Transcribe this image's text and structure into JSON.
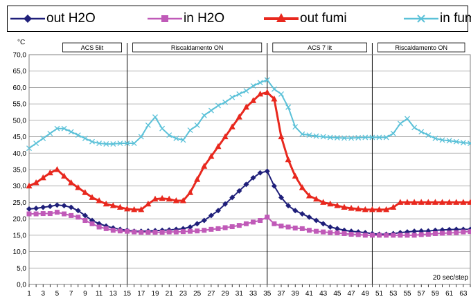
{
  "chart_data": {
    "type": "line",
    "ylabel": "°C",
    "ylim": [
      0,
      70
    ],
    "yticks": [
      "0,0",
      "5,0",
      "10,0",
      "15,0",
      "20,0",
      "25,0",
      "30,0",
      "35,0",
      "40,0",
      "45,0",
      "50,0",
      "55,0",
      "60,0",
      "65,0",
      "70,0"
    ],
    "xlim": [
      1,
      64
    ],
    "xticks": [
      "1",
      "3",
      "5",
      "7",
      "9",
      "11",
      "13",
      "15",
      "17",
      "19",
      "21",
      "23",
      "25",
      "27",
      "29",
      "31",
      "33",
      "35",
      "37",
      "39",
      "41",
      "43",
      "45",
      "47",
      "49",
      "51",
      "53",
      "55",
      "57",
      "59",
      "61",
      "63"
    ],
    "grid": "horizontal",
    "legend_position": "top",
    "annotation": "20 sec/step",
    "phases": [
      {
        "label": "ACS  5lit",
        "start": 5,
        "end": 15
      },
      {
        "label": "Riscaldamento ON",
        "start": 15,
        "end": 35
      },
      {
        "label": "ACS 7 lit",
        "start": 35,
        "end": 50
      },
      {
        "label": "Riscaldamento ON",
        "start": 50,
        "end": 64
      }
    ],
    "series": [
      {
        "name": "out H2O",
        "color": "#1f1f7a",
        "marker": "diamond",
        "values": [
          23,
          23.2,
          23.5,
          23.8,
          24.2,
          24,
          23.5,
          22.5,
          21,
          19.5,
          18.5,
          17.8,
          17.2,
          16.8,
          16.5,
          16.2,
          16.2,
          16.3,
          16.4,
          16.5,
          16.6,
          16.8,
          17,
          17.5,
          18.5,
          19.5,
          21,
          22.5,
          24.5,
          26.5,
          28.5,
          30.5,
          32.5,
          34,
          34.5,
          30,
          26.5,
          24,
          22.5,
          21.5,
          20.5,
          19.5,
          18.5,
          17.5,
          17,
          16.5,
          16.2,
          16,
          15.8,
          15.5,
          15.3,
          15.3,
          15.5,
          15.8,
          16,
          16.2,
          16.3,
          16.3,
          16.5,
          16.6,
          16.7,
          16.8,
          16.8,
          16.8
        ]
      },
      {
        "name": "in H2O",
        "color": "#c05ab8",
        "marker": "square",
        "values": [
          21.5,
          21.5,
          21.6,
          21.6,
          22,
          21.5,
          21,
          20.5,
          19.5,
          18.5,
          17.5,
          17,
          16.5,
          16.3,
          16.2,
          16,
          15.9,
          15.9,
          15.9,
          15.9,
          16,
          16,
          16.1,
          16.2,
          16.3,
          16.5,
          16.8,
          17,
          17.3,
          17.6,
          18,
          18.5,
          19,
          19.5,
          20.5,
          18.5,
          17.8,
          17.5,
          17.2,
          17,
          16.5,
          16.2,
          16,
          15.8,
          15.7,
          15.5,
          15.3,
          15.2,
          15,
          15,
          15,
          15,
          15,
          15,
          15,
          15,
          15.2,
          15.3,
          15.5,
          15.6,
          15.7,
          15.8,
          16,
          16.1
        ]
      },
      {
        "name": "out fumi",
        "color": "#e8281e",
        "marker": "triangle",
        "values": [
          30,
          31,
          32.5,
          34,
          35,
          33,
          31,
          29.5,
          28,
          26.5,
          25.5,
          24.5,
          24,
          23.5,
          23,
          22.8,
          22.8,
          24.5,
          26,
          26.2,
          26,
          25.5,
          25.5,
          28,
          32,
          36,
          39,
          42,
          45,
          48,
          51,
          54,
          56,
          58,
          58.5,
          56.5,
          45,
          38,
          33,
          29.5,
          27,
          26,
          25,
          24.5,
          24,
          23.5,
          23.2,
          23,
          22.8,
          22.8,
          22.8,
          22.8,
          23.5,
          25,
          25,
          25,
          25,
          25,
          25,
          25,
          25,
          25,
          25,
          25
        ]
      },
      {
        "name": "in fumi",
        "color": "#5bc1d8",
        "marker": "x",
        "values": [
          41.5,
          43,
          44.5,
          46,
          47.5,
          47.5,
          46.5,
          45.5,
          44.5,
          43.5,
          43,
          42.8,
          42.8,
          43,
          43,
          43,
          45,
          48.5,
          51,
          47.5,
          45.5,
          44.5,
          44,
          47,
          48.5,
          51.5,
          53,
          54.5,
          55.5,
          57,
          58,
          59,
          60.5,
          61.5,
          62.3,
          59.5,
          58,
          54,
          48,
          45.8,
          45.5,
          45.2,
          45,
          44.8,
          44.7,
          44.6,
          44.6,
          44.7,
          44.8,
          44.8,
          44.8,
          44.8,
          46,
          49,
          50.5,
          47.8,
          46.5,
          45.5,
          44.5,
          44,
          43.8,
          43.5,
          43.2,
          43
        ]
      }
    ]
  }
}
